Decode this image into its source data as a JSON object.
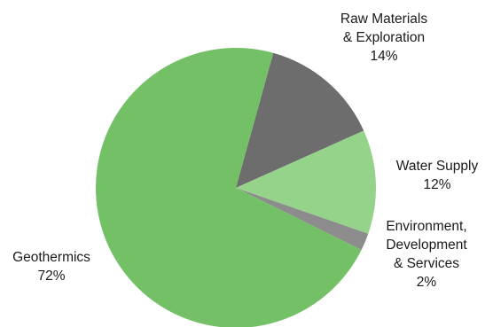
{
  "chart_data": {
    "type": "pie",
    "slices": [
      {
        "label_lines": [
          "Raw Materials",
          "& Exploration"
        ],
        "pct_text": "14%",
        "value": 14,
        "color": "#6d6d6d"
      },
      {
        "label_lines": [
          "Water Supply"
        ],
        "pct_text": "12%",
        "value": 12,
        "color": "#95d38a"
      },
      {
        "label_lines": [
          "Environment,",
          "Development",
          "& Services"
        ],
        "pct_text": "2%",
        "value": 2,
        "color": "#8c8c8c"
      },
      {
        "label_lines": [
          "Geothermics"
        ],
        "pct_text": "72%",
        "value": 72,
        "color": "#74c067"
      }
    ],
    "legend": "none",
    "grid": false
  }
}
